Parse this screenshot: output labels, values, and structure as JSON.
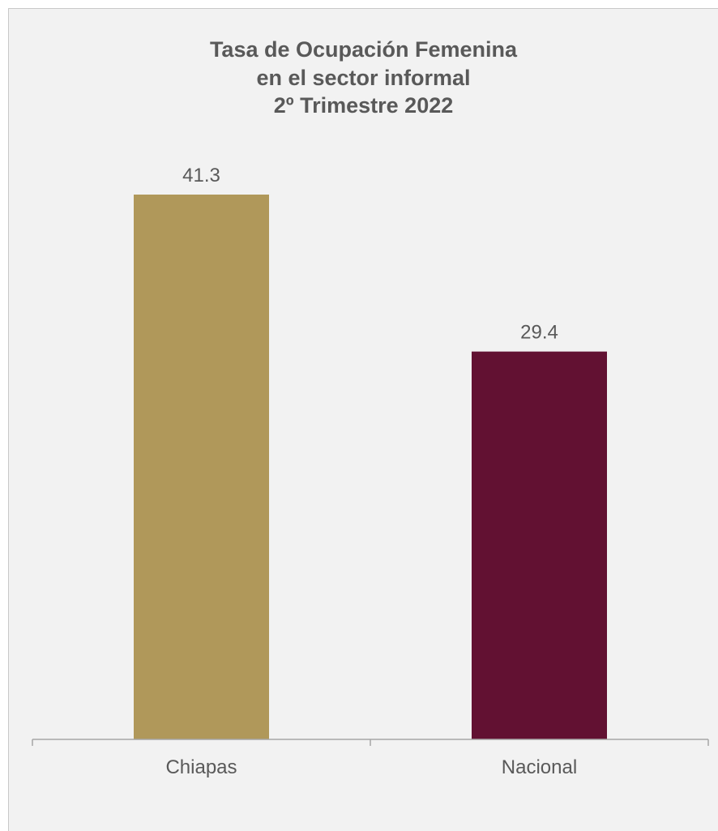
{
  "chart_data": {
    "type": "bar",
    "title_lines": [
      "Tasa de Ocupación Femenina",
      "en el sector informal",
      "2º Trimestre 2022"
    ],
    "categories": [
      "Chiapas",
      "Nacional"
    ],
    "values": [
      41.3,
      29.4
    ],
    "value_labels": [
      "41.3",
      "29.4"
    ],
    "colors": [
      "#b0985a",
      "#621132"
    ],
    "ylim": [
      0,
      41.3
    ],
    "grid": false,
    "legend": "none",
    "xlabel": "",
    "ylabel": ""
  }
}
